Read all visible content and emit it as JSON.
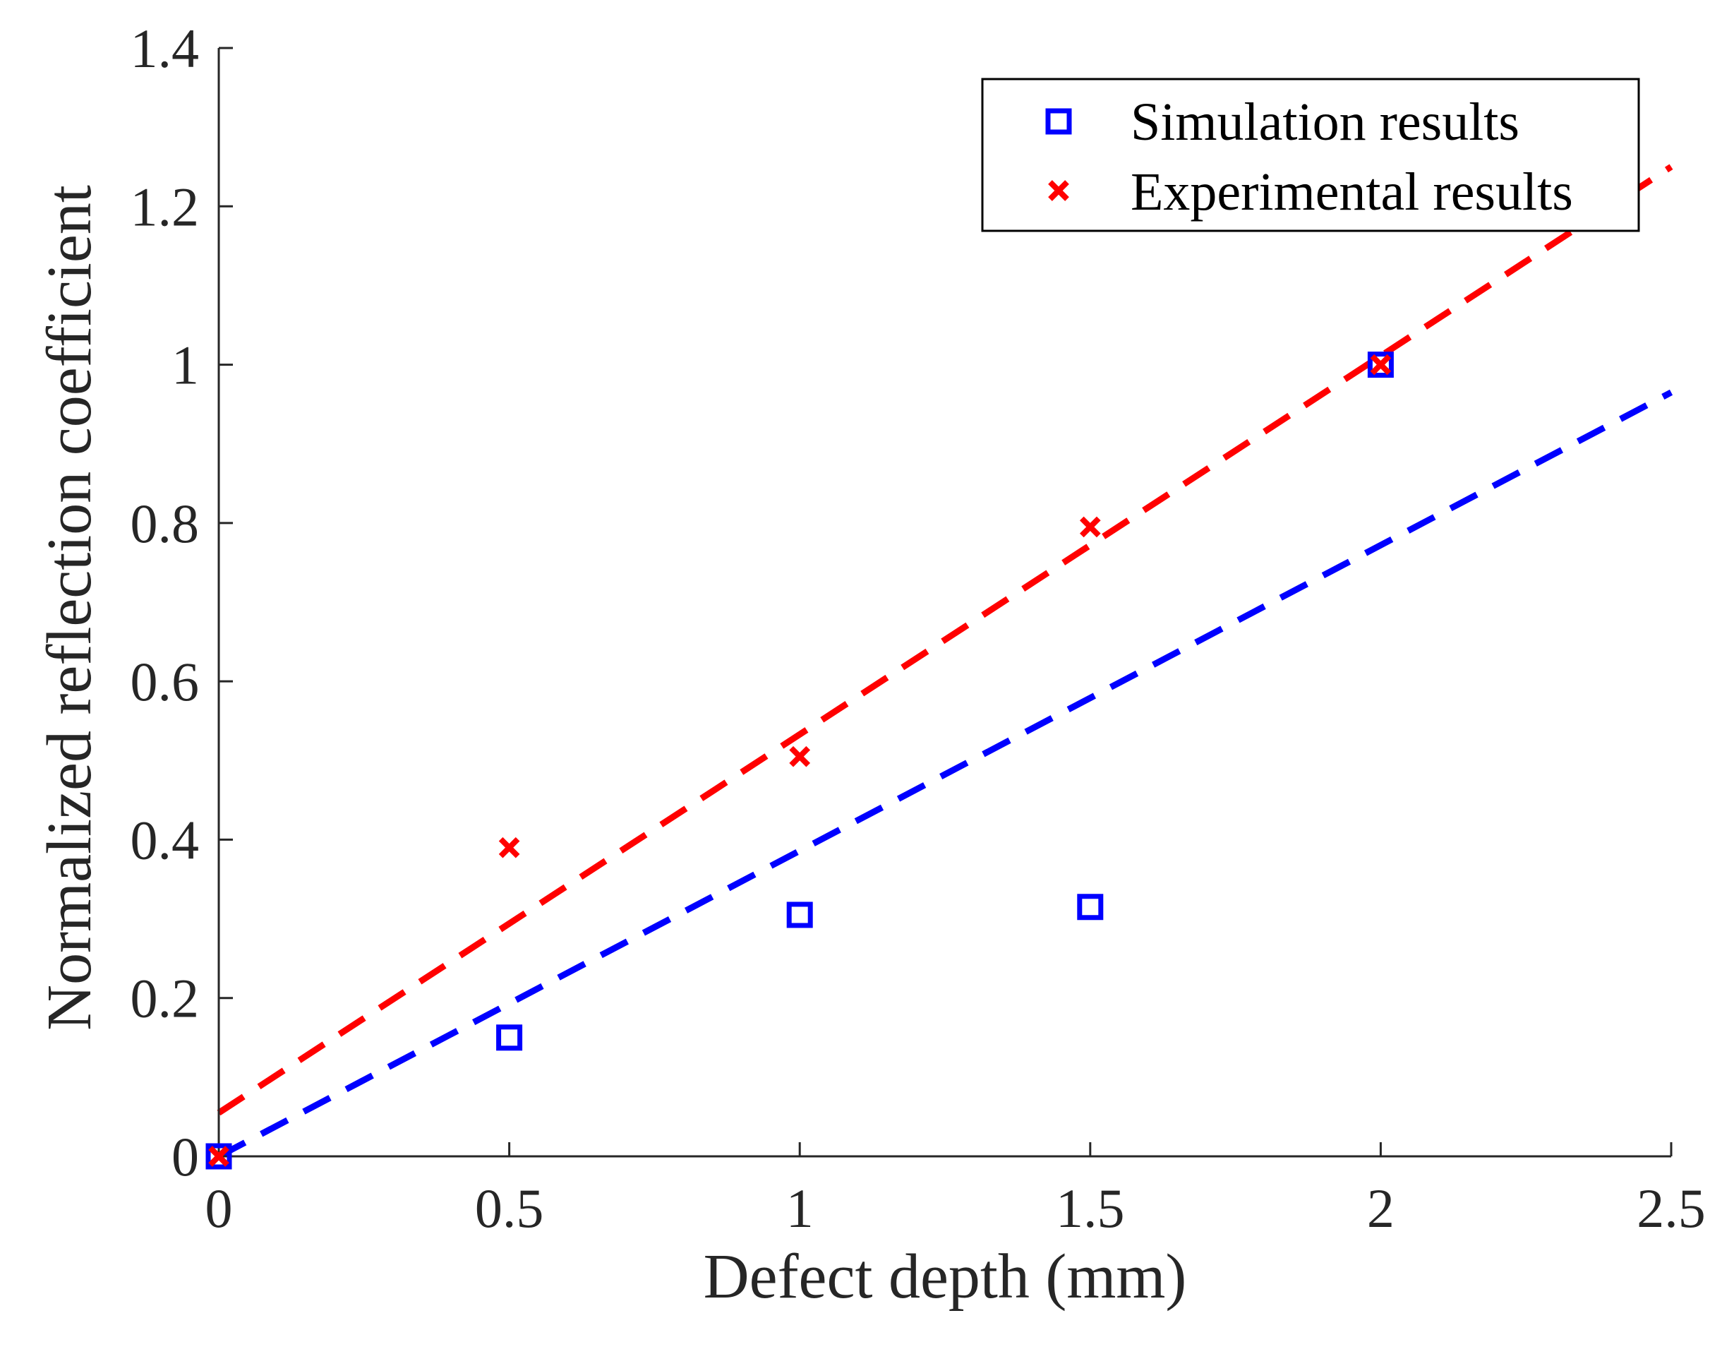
{
  "chart_data": {
    "type": "scatter",
    "title": "",
    "xlabel": "Defect depth (mm)",
    "ylabel": "Normalized reflection coefficient",
    "xlim": [
      0,
      2.5
    ],
    "ylim": [
      0,
      1.4
    ],
    "xticks": [
      0,
      0.5,
      1,
      1.5,
      2,
      2.5
    ],
    "xtick_labels": [
      "0",
      "0.5",
      "1",
      "1.5",
      "2",
      "2.5"
    ],
    "yticks": [
      0,
      0.2,
      0.4,
      0.6,
      0.8,
      1,
      1.2,
      1.4
    ],
    "ytick_labels": [
      "0",
      "0.2",
      "0.4",
      "0.6",
      "0.8",
      "1",
      "1.2",
      "1.4"
    ],
    "grid": false,
    "legend_position": "top-right",
    "series": [
      {
        "name": "Simulation results",
        "marker": "square",
        "color": "#0000ff",
        "x": [
          0,
          0.5,
          1,
          1.5,
          2
        ],
        "y": [
          0,
          0.15,
          0.305,
          0.315,
          1.0
        ],
        "fit_line": {
          "x": [
            0,
            2.5
          ],
          "y": [
            0,
            0.965
          ],
          "style": "dashed"
        }
      },
      {
        "name": "Experimental results",
        "marker": "x",
        "color": "#ff0000",
        "x": [
          0,
          0.5,
          1,
          1.5,
          2
        ],
        "y": [
          0,
          0.39,
          0.505,
          0.795,
          1.0
        ],
        "fit_line": {
          "x": [
            0,
            2.5
          ],
          "y": [
            0.055,
            1.25
          ],
          "style": "dashed"
        }
      }
    ]
  }
}
